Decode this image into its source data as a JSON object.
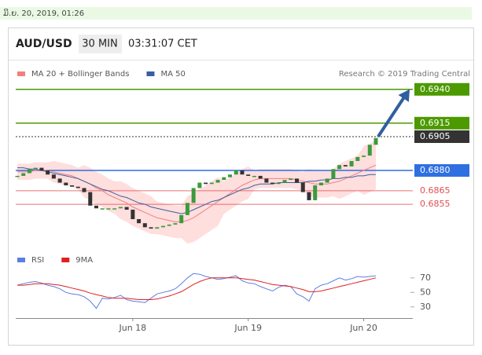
{
  "header": {
    "timestamp": "ມິ.ຍ. 20, 2019, 01:26",
    "symbol": "AUD/USD",
    "interval": "30 MIN",
    "time": "03:31:07 CET",
    "credit": "Research © 2019 Trading Central"
  },
  "chart_data": [
    {
      "type": "candlestick",
      "categories": [
        null,
        null,
        null,
        null,
        null,
        null,
        null,
        null,
        null,
        null,
        null,
        null,
        null,
        null,
        null,
        null,
        null,
        null,
        null,
        "Jun 18",
        null,
        null,
        null,
        null,
        null,
        null,
        null,
        null,
        null,
        null,
        null,
        null,
        null,
        null,
        null,
        null,
        null,
        null,
        "Jun 19",
        null,
        null,
        null,
        null,
        null,
        null,
        null,
        null,
        null,
        null,
        null,
        null,
        null,
        null,
        null,
        null,
        null,
        null,
        "Jun 20",
        null,
        null
      ],
      "close": [
        0.6876,
        0.6878,
        0.6881,
        0.6882,
        0.688,
        0.6877,
        0.6874,
        0.6871,
        0.6869,
        0.6868,
        0.6867,
        0.6864,
        0.6854,
        0.6852,
        0.6852,
        0.6852,
        0.6852,
        0.6853,
        0.6851,
        0.6844,
        0.6841,
        0.6838,
        0.6837,
        0.6838,
        0.6839,
        0.684,
        0.6841,
        0.6847,
        0.6856,
        0.6867,
        0.6871,
        0.687,
        0.6871,
        0.6873,
        0.6875,
        0.6877,
        0.688,
        0.6877,
        0.6876,
        0.6876,
        0.6874,
        0.6871,
        0.687,
        0.6871,
        0.6873,
        0.6874,
        0.6871,
        0.6864,
        0.6858,
        0.6869,
        0.6871,
        0.6874,
        0.6881,
        0.6884,
        0.6883,
        0.6887,
        0.689,
        0.6891,
        0.6899,
        0.6904
      ],
      "up_color": "#3c9a3c",
      "down_color": "#333333",
      "series": [
        {
          "name": "MA 20 + Bollinger Bands",
          "color": "#f08080",
          "band_color": "#ffdede",
          "values": [
            0.6879,
            0.6879,
            0.6879,
            0.688,
            0.688,
            0.688,
            0.6879,
            0.6878,
            0.6877,
            0.6876,
            0.6874,
            0.6872,
            0.687,
            0.6867,
            0.6865,
            0.6862,
            0.686,
            0.6858,
            0.6856,
            0.6853,
            0.6851,
            0.6849,
            0.6847,
            0.6845,
            0.6844,
            0.6843,
            0.6842,
            0.6842,
            0.6843,
            0.6845,
            0.6848,
            0.6851,
            0.6854,
            0.6857,
            0.686,
            0.6863,
            0.6866,
            0.6869,
            0.6871,
            0.6873,
            0.6874,
            0.6874,
            0.6874,
            0.6874,
            0.6874,
            0.6874,
            0.6873,
            0.6872,
            0.6871,
            0.687,
            0.687,
            0.687,
            0.6871,
            0.6872,
            0.6874,
            0.6876,
            0.6878,
            0.688,
            0.6882,
            0.6884
          ],
          "upper": [
            0.6885,
            0.6885,
            0.6885,
            0.6886,
            0.6886,
            0.6886,
            0.6887,
            0.6886,
            0.6885,
            0.6884,
            0.6882,
            0.6884,
            0.6882,
            0.6879,
            0.6877,
            0.6874,
            0.6872,
            0.6872,
            0.687,
            0.6867,
            0.6865,
            0.6863,
            0.6861,
            0.6857,
            0.6856,
            0.6855,
            0.6854,
            0.6854,
            0.6861,
            0.6863,
            0.6866,
            0.6869,
            0.6872,
            0.6875,
            0.6872,
            0.6875,
            0.6878,
            0.6881,
            0.6883,
            0.688,
            0.6881,
            0.6881,
            0.6881,
            0.6881,
            0.6881,
            0.6881,
            0.688,
            0.6879,
            0.6881,
            0.688,
            0.688,
            0.688,
            0.6881,
            0.6885,
            0.6887,
            0.6889,
            0.6891,
            0.6898,
            0.69,
            0.6902
          ],
          "lower": [
            0.6873,
            0.6873,
            0.6873,
            0.6874,
            0.6874,
            0.6874,
            0.6871,
            0.687,
            0.6869,
            0.6868,
            0.6866,
            0.686,
            0.6858,
            0.6855,
            0.6853,
            0.685,
            0.6848,
            0.6844,
            0.6842,
            0.6839,
            0.6837,
            0.6835,
            0.6833,
            0.6833,
            0.6832,
            0.6831,
            0.683,
            0.683,
            0.6826,
            0.6827,
            0.683,
            0.6833,
            0.6836,
            0.6839,
            0.6848,
            0.6851,
            0.6854,
            0.6857,
            0.6859,
            0.6866,
            0.6867,
            0.6867,
            0.6867,
            0.6867,
            0.6867,
            0.6867,
            0.6866,
            0.6865,
            0.6861,
            0.686,
            0.686,
            0.686,
            0.6861,
            0.6859,
            0.6861,
            0.6863,
            0.6865,
            0.6862,
            0.6864,
            0.6866
          ]
        },
        {
          "name": "MA 50",
          "color": "#3a5f9f",
          "values": [
            0.6882,
            0.6882,
            0.6881,
            0.6881,
            0.688,
            0.6879,
            0.6878,
            0.6877,
            0.6876,
            0.6875,
            0.6874,
            0.6872,
            0.687,
            0.6868,
            0.6866,
            0.6865,
            0.6863,
            0.6861,
            0.686,
            0.6858,
            0.6856,
            0.6855,
            0.6853,
            0.6852,
            0.6851,
            0.685,
            0.6849,
            0.6848,
            0.6849,
            0.6851,
            0.6853,
            0.6855,
            0.6857,
            0.6858,
            0.686,
            0.6862,
            0.6864,
            0.6866,
            0.6867,
            0.6869,
            0.687,
            0.687,
            0.687,
            0.6871,
            0.6871,
            0.6871,
            0.6871,
            0.6871,
            0.6872,
            0.6872,
            0.6873,
            0.6873,
            0.6874,
            0.6874,
            0.6875,
            0.6875,
            0.6876,
            0.6876,
            0.6877,
            0.6877
          ]
        }
      ],
      "levels": [
        {
          "value": 0.694,
          "label": "0.6940",
          "color": "#4c9a00",
          "style": "box"
        },
        {
          "value": 0.6915,
          "label": "0.6915",
          "color": "#4c9a00",
          "style": "box"
        },
        {
          "value": 0.6905,
          "label": "0.6905",
          "color": "#333333",
          "style": "box"
        },
        {
          "value": 0.688,
          "label": "0.6880",
          "color": "#2f6fe0",
          "style": "box"
        },
        {
          "value": 0.6865,
          "label": "0.6865",
          "color": "#e05050",
          "style": "text"
        },
        {
          "value": 0.6855,
          "label": "0.6855",
          "color": "#e05050",
          "style": "text"
        }
      ],
      "arrow_color": "#2f5fa0",
      "ylim": [
        0.6826,
        0.6948
      ]
    },
    {
      "type": "line",
      "ylim": [
        20,
        85
      ],
      "yticks": [
        30,
        50,
        70
      ],
      "series": [
        {
          "name": "RSI",
          "color": "#5b7fe0",
          "values": [
            60,
            62,
            64,
            65,
            63,
            60,
            58,
            55,
            50,
            48,
            47,
            44,
            38,
            28,
            42,
            41,
            43,
            46,
            40,
            38,
            37,
            36,
            42,
            48,
            50,
            52,
            55,
            62,
            70,
            76,
            75,
            72,
            70,
            68,
            69,
            71,
            73,
            66,
            63,
            62,
            58,
            55,
            52,
            57,
            60,
            58,
            48,
            44,
            38,
            55,
            60,
            62,
            66,
            70,
            67,
            69,
            72,
            71,
            72,
            73
          ]
        },
        {
          "name": "9MA",
          "color": "#e02020",
          "values": [
            60,
            60,
            61,
            62,
            62,
            62,
            61,
            60,
            58,
            56,
            54,
            52,
            49,
            47,
            45,
            43,
            42,
            42,
            42,
            41,
            40,
            40,
            40,
            41,
            43,
            45,
            48,
            51,
            56,
            61,
            65,
            68,
            70,
            70,
            70,
            70,
            70,
            69,
            68,
            67,
            65,
            63,
            61,
            60,
            59,
            58,
            56,
            54,
            51,
            51,
            52,
            54,
            56,
            58,
            60,
            62,
            64,
            66,
            68,
            70
          ]
        }
      ]
    }
  ]
}
